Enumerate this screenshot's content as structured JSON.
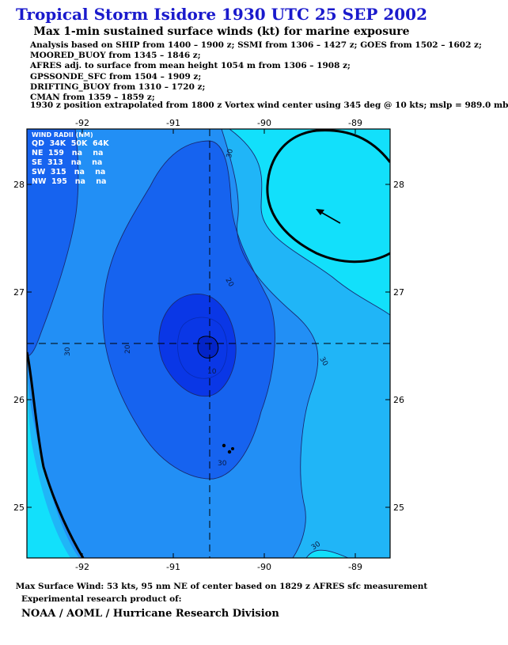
{
  "header": {
    "title": "Tropical Storm Isidore 1930 UTC 25 SEP 2002",
    "subtitle": "Max 1-min sustained surface winds (kt) for marine exposure"
  },
  "analysis_lines": [
    "Analysis based on  SHIP from 1400 – 1900 z;  SSMI from 1306 – 1427 z;  GOES from 1502 – 1602 z;",
    "MOORED_BUOY from 1345 – 1846 z;",
    "AFRES adj. to surface from mean height 1054 m from 1306 – 1908 z;",
    "GPSSONDE_SFC from 1504 – 1909 z;",
    "DRIFTING_BUOY from 1310 – 1720 z;",
    "CMAN from 1359 – 1859 z;"
  ],
  "position_line": "1930 z position extrapolated from 1800 z Vortex wind center using 345 deg @ 10 kts; mslp = 989.0 mb",
  "wind_radii": {
    "title": "WIND RADII (NM)",
    "header": "QD  34K  50K  64K",
    "rows": [
      "NE  159   na    na",
      "SE  313   na    na",
      "SW  315   na    na",
      "NW  195   na    na"
    ]
  },
  "map": {
    "lon_labels": [
      "-92",
      "-91",
      "-90",
      "-89"
    ],
    "lat_labels": [
      "28",
      "27",
      "26",
      "25"
    ],
    "contour_labels": [
      "30",
      "20",
      "10",
      "30",
      "20",
      "30",
      "30",
      "30"
    ],
    "contour_levels_kt": [
      10,
      20,
      30,
      40,
      50
    ],
    "center": {
      "lon": -90.6,
      "lat": 26.5
    },
    "colors": {
      "lt10": "#0a37e6",
      "10to20": "#1663ef",
      "20to30": "#228ff5",
      "30to40": "#20b5f7",
      "gt40": "#12e0fb"
    }
  },
  "footer": {
    "max_wind": "Max Surface Wind: 53 kts, 95 nm NE of center based on 1829 z AFRES sfc measurement",
    "experimental": "Experimental research product of:",
    "credit": "NOAA / AOML / Hurricane Research Division"
  }
}
